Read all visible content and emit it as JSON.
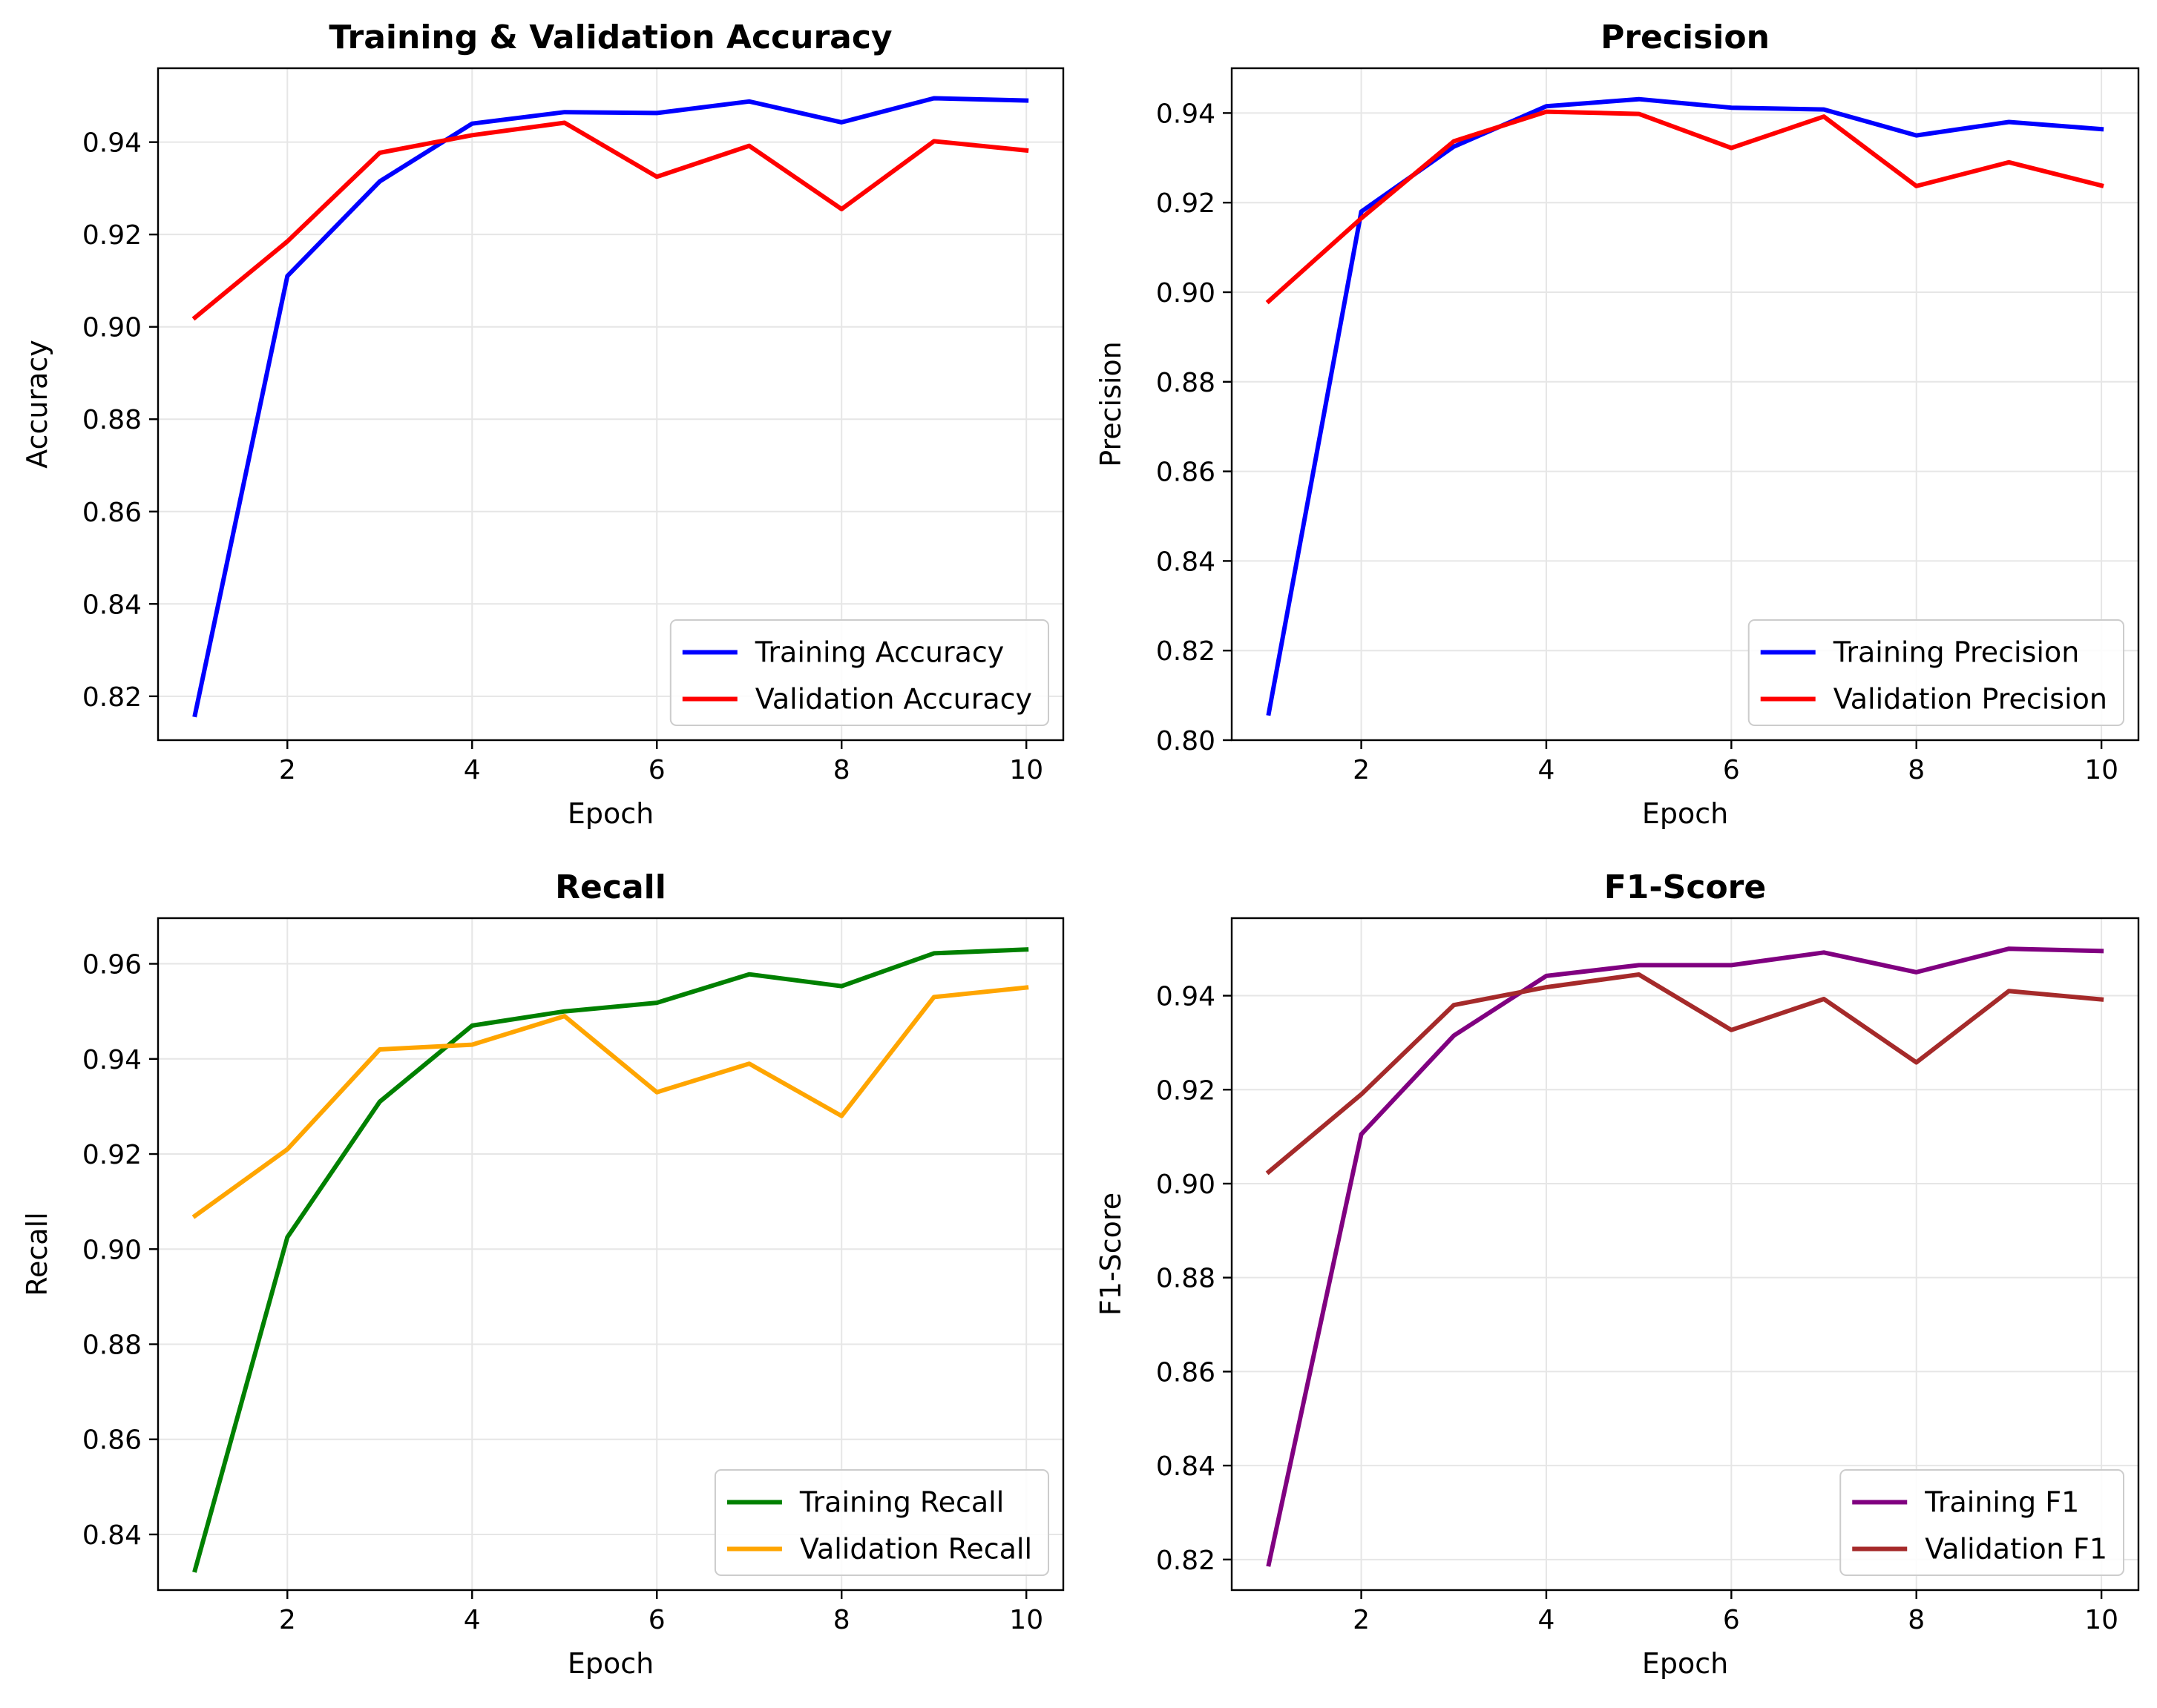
{
  "chart_data": [
    {
      "type": "line",
      "title": "Training & Validation Accuracy",
      "xlabel": "Epoch",
      "ylabel": "Accuracy",
      "x": [
        1,
        2,
        3,
        4,
        5,
        6,
        7,
        8,
        9,
        10
      ],
      "xlim": [
        0.6,
        10.4
      ],
      "ylim": [
        0.8105,
        0.956
      ],
      "xticks": [
        2,
        4,
        6,
        8,
        10
      ],
      "yticks": [
        0.82,
        0.84,
        0.86,
        0.88,
        0.9,
        0.92,
        0.94
      ],
      "tick_decimals": 2,
      "grid": true,
      "legend_position": "lower-right",
      "series": [
        {
          "name": "Training Accuracy",
          "color": "#0000ff",
          "values": [
            0.816,
            0.911,
            0.9315,
            0.944,
            0.9465,
            0.9463,
            0.9488,
            0.9443,
            0.9495,
            0.949
          ]
        },
        {
          "name": "Validation Accuracy",
          "color": "#ff0000",
          "values": [
            0.902,
            0.9185,
            0.9377,
            0.9415,
            0.9442,
            0.9325,
            0.9392,
            0.9255,
            0.9402,
            0.9382
          ]
        }
      ]
    },
    {
      "type": "line",
      "title": "Precision",
      "xlabel": "Epoch",
      "ylabel": "Precision",
      "x": [
        1,
        2,
        3,
        4,
        5,
        6,
        7,
        8,
        9,
        10
      ],
      "xlim": [
        0.6,
        10.4
      ],
      "ylim": [
        0.8,
        0.95
      ],
      "xticks": [
        2,
        4,
        6,
        8,
        10
      ],
      "yticks": [
        0.8,
        0.82,
        0.84,
        0.86,
        0.88,
        0.9,
        0.92,
        0.94
      ],
      "tick_decimals": 2,
      "grid": true,
      "legend_position": "lower-right",
      "series": [
        {
          "name": "Training Precision",
          "color": "#0000ff",
          "values": [
            0.806,
            0.918,
            0.9325,
            0.9415,
            0.9431,
            0.9412,
            0.9408,
            0.935,
            0.938,
            0.9364
          ]
        },
        {
          "name": "Validation Precision",
          "color": "#ff0000",
          "values": [
            0.898,
            0.9165,
            0.9337,
            0.9403,
            0.9398,
            0.9322,
            0.9392,
            0.9237,
            0.929,
            0.9238
          ]
        }
      ]
    },
    {
      "type": "line",
      "title": "Recall",
      "xlabel": "Epoch",
      "ylabel": "Recall",
      "x": [
        1,
        2,
        3,
        4,
        5,
        6,
        7,
        8,
        9,
        10
      ],
      "xlim": [
        0.6,
        10.4
      ],
      "ylim": [
        0.8283,
        0.9696
      ],
      "xticks": [
        2,
        4,
        6,
        8,
        10
      ],
      "yticks": [
        0.84,
        0.86,
        0.88,
        0.9,
        0.92,
        0.94,
        0.96
      ],
      "tick_decimals": 2,
      "grid": true,
      "legend_position": "lower-right",
      "series": [
        {
          "name": "Training Recall",
          "color": "#008000",
          "values": [
            0.8325,
            0.9025,
            0.931,
            0.947,
            0.95,
            0.9518,
            0.9578,
            0.9553,
            0.9622,
            0.963
          ]
        },
        {
          "name": "Validation Recall",
          "color": "#ffa500",
          "values": [
            0.907,
            0.921,
            0.942,
            0.943,
            0.949,
            0.933,
            0.939,
            0.928,
            0.953,
            0.955
          ]
        }
      ]
    },
    {
      "type": "line",
      "title": "F1-Score",
      "xlabel": "Epoch",
      "ylabel": "F1-Score",
      "x": [
        1,
        2,
        3,
        4,
        5,
        6,
        7,
        8,
        9,
        10
      ],
      "xlim": [
        0.6,
        10.4
      ],
      "ylim": [
        0.8135,
        0.9565
      ],
      "xticks": [
        2,
        4,
        6,
        8,
        10
      ],
      "yticks": [
        0.82,
        0.84,
        0.86,
        0.88,
        0.9,
        0.92,
        0.94
      ],
      "tick_decimals": 2,
      "grid": true,
      "legend_position": "lower-right",
      "series": [
        {
          "name": "Training F1",
          "color": "#800080",
          "values": [
            0.819,
            0.9105,
            0.9315,
            0.9442,
            0.9465,
            0.9465,
            0.9492,
            0.945,
            0.95,
            0.9495
          ]
        },
        {
          "name": "Validation F1",
          "color": "#a52a2a",
          "values": [
            0.9025,
            0.919,
            0.938,
            0.9418,
            0.9445,
            0.9327,
            0.9393,
            0.9258,
            0.941,
            0.9392
          ]
        }
      ]
    }
  ]
}
